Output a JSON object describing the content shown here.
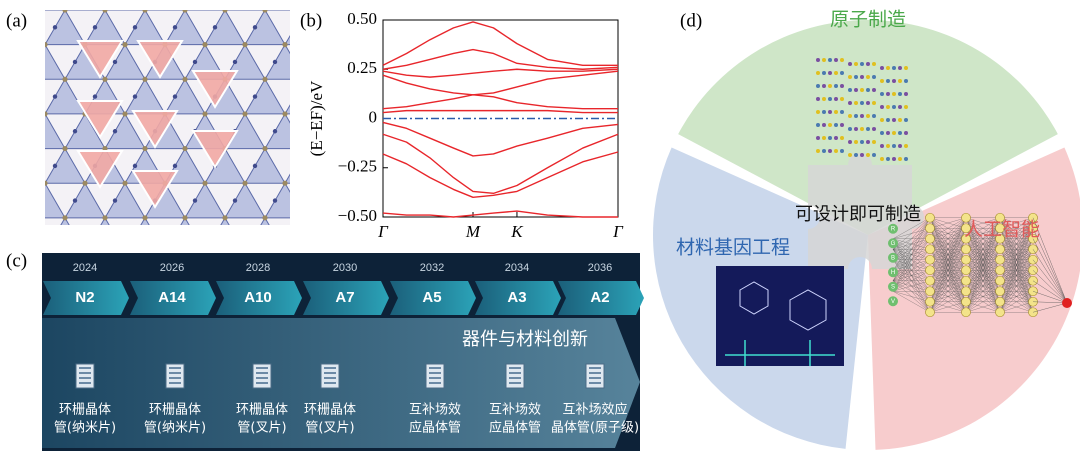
{
  "panel_labels": [
    "(a)",
    "(b)",
    "(c)",
    "(d)"
  ],
  "chart_data": {
    "type": "line",
    "ylabel": "(E−EF)/eV",
    "x": [
      0,
      0.1,
      0.2,
      0.3,
      0.383,
      0.47,
      0.57,
      0.7,
      0.85,
      1
    ],
    "xlim": [
      0,
      1
    ],
    "xticks": [
      {
        "value": 0,
        "label": "Γ"
      },
      {
        "value": 0.383,
        "label": "M"
      },
      {
        "value": 0.57,
        "label": "K"
      },
      {
        "value": 1,
        "label": "Γ"
      }
    ],
    "ylim": [
      -0.5,
      0.5
    ],
    "yticks": [
      {
        "value": -0.5,
        "label": "−0.50"
      },
      {
        "value": -0.25,
        "label": "−0.25"
      },
      0,
      0.25,
      {
        "value": 0.5,
        "label": "0.50"
      }
    ],
    "hline": {
      "value": 0,
      "color": "#2a5caa"
    },
    "series": [
      {
        "color": "#e8262b",
        "values": [
          0.27,
          0.33,
          0.4,
          0.46,
          0.49,
          0.46,
          0.38,
          0.3,
          0.27,
          0.27
        ]
      },
      {
        "color": "#e8262b",
        "values": [
          0.25,
          0.27,
          0.3,
          0.33,
          0.35,
          0.33,
          0.28,
          0.26,
          0.25,
          0.26
        ]
      },
      {
        "color": "#e8262b",
        "values": [
          0.24,
          0.22,
          0.21,
          0.22,
          0.23,
          0.24,
          0.25,
          0.24,
          0.24,
          0.25
        ]
      },
      {
        "color": "#e8262b",
        "values": [
          0.22,
          0.18,
          0.15,
          0.13,
          0.12,
          0.13,
          0.16,
          0.2,
          0.22,
          0.24
        ]
      },
      {
        "color": "#e8262b",
        "values": [
          0.05,
          0.06,
          0.08,
          0.1,
          0.12,
          0.11,
          0.08,
          0.06,
          0.05,
          0.05
        ]
      },
      {
        "color": "#e8262b",
        "values": [
          0.03,
          0.04,
          0.04,
          0.04,
          0.04,
          0.04,
          0.04,
          0.04,
          0.03,
          0.03
        ]
      },
      {
        "color": "#e8262b",
        "values": [
          -0.02,
          -0.05,
          -0.1,
          -0.15,
          -0.19,
          -0.18,
          -0.14,
          -0.1,
          -0.05,
          -0.03
        ]
      },
      {
        "color": "#e8262b",
        "values": [
          -0.08,
          -0.12,
          -0.2,
          -0.3,
          -0.37,
          -0.38,
          -0.34,
          -0.25,
          -0.15,
          -0.08
        ]
      },
      {
        "color": "#e8262b",
        "values": [
          -0.18,
          -0.23,
          -0.3,
          -0.36,
          -0.4,
          -0.39,
          -0.37,
          -0.3,
          -0.22,
          -0.17
        ]
      },
      {
        "color": "#e8262b",
        "values": [
          -0.48,
          -0.49,
          -0.49,
          -0.5,
          -0.49,
          -0.48,
          -0.47,
          -0.49,
          -0.5,
          -0.5
        ]
      }
    ]
  },
  "roadmap": {
    "years": [
      "2024",
      "2026",
      "2028",
      "2030",
      "2032",
      "2034",
      "2036"
    ],
    "nodes": [
      "N2",
      "A14",
      "A10",
      "A7",
      "A5",
      "A3",
      "A2"
    ],
    "heading": "器件与材料创新",
    "devices": [
      [
        "环栅晶体",
        "管(纳米片)"
      ],
      [
        "环栅晶体",
        "管(纳米片)"
      ],
      [
        "环栅晶体",
        "管(叉片)"
      ],
      [
        "环栅晶体",
        "管(叉片)"
      ],
      [
        "互补场效",
        "应晶体管"
      ],
      [
        "互补场效",
        "应晶体管"
      ],
      [
        "互补场效应",
        "晶体管(原子级)"
      ]
    ]
  },
  "framework": {
    "atomic": "原子制造",
    "center": "可设计即可制造",
    "genome": "材料基因工程",
    "ai": "人工智能",
    "nn_inputs": [
      "R",
      "G",
      "B",
      "H",
      "S",
      "V"
    ]
  }
}
